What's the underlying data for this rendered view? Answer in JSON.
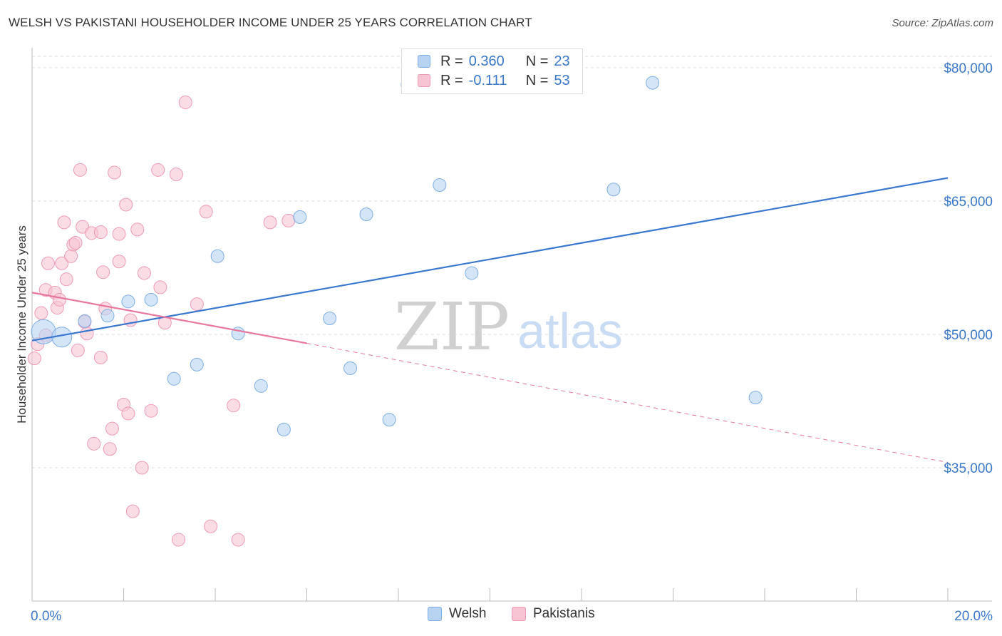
{
  "header": {
    "title": "WELSH VS PAKISTANI HOUSEHOLDER INCOME UNDER 25 YEARS CORRELATION CHART",
    "source": "Source: ZipAtlas.com"
  },
  "watermark": {
    "zip": "ZIP",
    "atlas": "atlas"
  },
  "legend_top": {
    "r_label": "R =",
    "n_label": "N =",
    "rows": [
      {
        "r": "0.360",
        "n": "23"
      },
      {
        "r": "-0.111",
        "n": "53"
      }
    ]
  },
  "legend_bottom": {
    "welsh": "Welsh",
    "pakistanis": "Pakistanis"
  },
  "colors": {
    "welsh_fill": "#b8d3f2",
    "welsh_stroke": "#7eaee4",
    "welsh_line": "#3a78d0",
    "pak_fill": "#f7c4d3",
    "pak_stroke": "#ee9ab5",
    "pak_line": "#e8779f",
    "axis_text": "#3a78c9",
    "grid": "#dddddd"
  },
  "chart_data": {
    "type": "scatter",
    "title": "WELSH VS PAKISTANI HOUSEHOLDER INCOME UNDER 25 YEARS CORRELATION CHART",
    "xlabel": "",
    "ylabel": "Householder Income Under 25 years",
    "xlim": [
      0,
      20
    ],
    "ylim": [
      20000,
      82000
    ],
    "x_tick_labels": [
      "0.0%",
      "20.0%"
    ],
    "y_ticks": [
      35000,
      50000,
      65000,
      80000
    ],
    "y_tick_labels": [
      "$35,000",
      "$50,000",
      "$65,000",
      "$80,000"
    ],
    "grid": true,
    "series": [
      {
        "name": "Welsh",
        "r": 0.36,
        "n": 23,
        "points": [
          {
            "x": 0.25,
            "y": 50300,
            "s": "l"
          },
          {
            "x": 0.65,
            "y": 49700,
            "s": "m"
          },
          {
            "x": 1.15,
            "y": 51500
          },
          {
            "x": 1.65,
            "y": 52100
          },
          {
            "x": 2.1,
            "y": 53700
          },
          {
            "x": 2.6,
            "y": 53900
          },
          {
            "x": 3.1,
            "y": 45000
          },
          {
            "x": 3.6,
            "y": 46600
          },
          {
            "x": 4.05,
            "y": 58800
          },
          {
            "x": 4.5,
            "y": 50100
          },
          {
            "x": 5.0,
            "y": 44200
          },
          {
            "x": 5.5,
            "y": 39300
          },
          {
            "x": 5.85,
            "y": 63200
          },
          {
            "x": 6.5,
            "y": 51800
          },
          {
            "x": 6.95,
            "y": 46200
          },
          {
            "x": 7.3,
            "y": 63500
          },
          {
            "x": 7.8,
            "y": 40400
          },
          {
            "x": 8.2,
            "y": 78100
          },
          {
            "x": 8.9,
            "y": 66800
          },
          {
            "x": 9.6,
            "y": 56900
          },
          {
            "x": 12.7,
            "y": 66300
          },
          {
            "x": 13.55,
            "y": 78300
          },
          {
            "x": 15.8,
            "y": 42900
          }
        ]
      },
      {
        "name": "Pakistanis",
        "r": -0.111,
        "n": 53,
        "points": [
          {
            "x": 0.05,
            "y": 47300
          },
          {
            "x": 0.12,
            "y": 48900
          },
          {
            "x": 0.2,
            "y": 52400
          },
          {
            "x": 0.3,
            "y": 55000
          },
          {
            "x": 0.3,
            "y": 49900
          },
          {
            "x": 0.35,
            "y": 58000
          },
          {
            "x": 0.5,
            "y": 54700
          },
          {
            "x": 0.55,
            "y": 53000
          },
          {
            "x": 0.6,
            "y": 53900
          },
          {
            "x": 0.65,
            "y": 58000
          },
          {
            "x": 0.7,
            "y": 62600
          },
          {
            "x": 0.75,
            "y": 56200
          },
          {
            "x": 0.85,
            "y": 58800
          },
          {
            "x": 0.9,
            "y": 60100
          },
          {
            "x": 0.95,
            "y": 60300
          },
          {
            "x": 1.0,
            "y": 48200
          },
          {
            "x": 1.05,
            "y": 68500
          },
          {
            "x": 1.1,
            "y": 62100
          },
          {
            "x": 1.15,
            "y": 51400
          },
          {
            "x": 1.2,
            "y": 50100
          },
          {
            "x": 1.3,
            "y": 61400
          },
          {
            "x": 1.35,
            "y": 37700
          },
          {
            "x": 1.5,
            "y": 47400
          },
          {
            "x": 1.5,
            "y": 61500
          },
          {
            "x": 1.55,
            "y": 57000
          },
          {
            "x": 1.6,
            "y": 52900
          },
          {
            "x": 1.7,
            "y": 37100
          },
          {
            "x": 1.75,
            "y": 39400
          },
          {
            "x": 1.8,
            "y": 68200
          },
          {
            "x": 1.9,
            "y": 58200
          },
          {
            "x": 1.9,
            "y": 61300
          },
          {
            "x": 2.0,
            "y": 42100
          },
          {
            "x": 2.05,
            "y": 64600
          },
          {
            "x": 2.1,
            "y": 41100
          },
          {
            "x": 2.15,
            "y": 51600
          },
          {
            "x": 2.2,
            "y": 30100
          },
          {
            "x": 2.3,
            "y": 61800
          },
          {
            "x": 2.4,
            "y": 35000
          },
          {
            "x": 2.45,
            "y": 56900
          },
          {
            "x": 2.6,
            "y": 41400
          },
          {
            "x": 2.75,
            "y": 68500
          },
          {
            "x": 2.8,
            "y": 55300
          },
          {
            "x": 2.9,
            "y": 51300
          },
          {
            "x": 3.15,
            "y": 68000
          },
          {
            "x": 3.2,
            "y": 26900
          },
          {
            "x": 3.35,
            "y": 76100
          },
          {
            "x": 3.6,
            "y": 53400
          },
          {
            "x": 3.8,
            "y": 63800
          },
          {
            "x": 3.9,
            "y": 28400
          },
          {
            "x": 4.4,
            "y": 42000
          },
          {
            "x": 4.5,
            "y": 26900
          },
          {
            "x": 5.2,
            "y": 62600
          },
          {
            "x": 5.6,
            "y": 62800
          }
        ]
      }
    ],
    "trendlines": [
      {
        "series": "Welsh",
        "x": [
          0,
          20
        ],
        "y": [
          49300,
          67600
        ],
        "style": "solid"
      },
      {
        "series": "Pakistanis",
        "x": [
          0,
          6
        ],
        "y": [
          54700,
          49000
        ],
        "style": "solid"
      },
      {
        "series": "Pakistanis",
        "x": [
          6,
          20
        ],
        "y": [
          49000,
          35600
        ],
        "style": "dashed"
      }
    ]
  }
}
